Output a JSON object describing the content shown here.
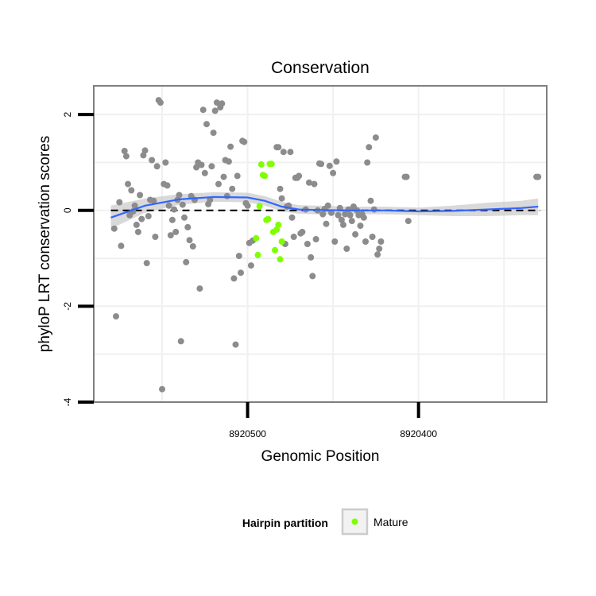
{
  "chart_data": {
    "type": "scatter",
    "title": "Conservation",
    "xlabel": "Genomic Position",
    "ylabel": "phyloP LRT conservation scores",
    "x_reversed": true,
    "xlim": [
      8920590,
      8920325
    ],
    "ylim": [
      -4,
      2.6
    ],
    "x_ticks": [
      8920500,
      8920400
    ],
    "x_tick_labels": [
      "8920500",
      "8920400"
    ],
    "y_ticks": [
      -4,
      -2,
      0,
      2
    ],
    "y_tick_labels": [
      "-4",
      "-2",
      "0",
      "2"
    ],
    "grid": true,
    "reference_line": {
      "y": 0,
      "style": "dashed"
    },
    "legend": {
      "title": "Hairpin partition",
      "placement": "bottom",
      "entries": [
        {
          "label": "Mature",
          "color": "#7fff00"
        }
      ]
    },
    "colors": {
      "other": "#8c8c8c",
      "mature": "#7fff00",
      "smooth": "#3366ff",
      "band": "#cccccc"
    },
    "series": [
      {
        "group": "other",
        "points": [
          [
            8920578,
            -0.38
          ],
          [
            8920577,
            -2.21
          ],
          [
            8920575,
            0.17
          ],
          [
            8920574,
            -0.74
          ],
          [
            8920572,
            1.24
          ],
          [
            8920571,
            1.13
          ],
          [
            8920570,
            0.55
          ],
          [
            8920569,
            -0.1
          ],
          [
            8920568,
            0.42
          ],
          [
            8920567,
            -0.02
          ],
          [
            8920566,
            0.1
          ],
          [
            8920565,
            -0.3
          ],
          [
            8920564,
            -0.45
          ],
          [
            8920563,
            0.32
          ],
          [
            8920562,
            -0.18
          ],
          [
            8920561,
            1.15
          ],
          [
            8920560,
            1.25
          ],
          [
            8920559,
            -1.1
          ],
          [
            8920558,
            -0.12
          ],
          [
            8920557,
            0.22
          ],
          [
            8920556,
            1.05
          ],
          [
            8920555,
            0.2
          ],
          [
            8920554,
            -0.55
          ],
          [
            8920553,
            0.92
          ],
          [
            8920552,
            2.3
          ],
          [
            8920551,
            2.25
          ],
          [
            8920550,
            -3.73
          ],
          [
            8920549,
            0.55
          ],
          [
            8920548,
            1.0
          ],
          [
            8920547,
            0.52
          ],
          [
            8920546,
            0.1
          ],
          [
            8920545,
            -0.52
          ],
          [
            8920544,
            -0.2
          ],
          [
            8920543,
            0.02
          ],
          [
            8920542,
            -0.45
          ],
          [
            8920541,
            0.22
          ],
          [
            8920540,
            0.32
          ],
          [
            8920539,
            -2.73
          ],
          [
            8920538,
            0.12
          ],
          [
            8920537,
            -0.15
          ],
          [
            8920536,
            -1.08
          ],
          [
            8920535,
            -0.35
          ],
          [
            8920534,
            -0.62
          ],
          [
            8920533,
            0.3
          ],
          [
            8920532,
            -0.75
          ],
          [
            8920531,
            0.22
          ],
          [
            8920530,
            0.9
          ],
          [
            8920529,
            1.0
          ],
          [
            8920528,
            -1.63
          ],
          [
            8920527,
            0.95
          ],
          [
            8920526,
            2.1
          ],
          [
            8920525,
            0.78
          ],
          [
            8920524,
            1.8
          ],
          [
            8920523,
            0.13
          ],
          [
            8920522,
            0.22
          ],
          [
            8920521,
            0.92
          ],
          [
            8920520,
            1.62
          ],
          [
            8920519,
            2.08
          ],
          [
            8920518,
            2.25
          ],
          [
            8920517,
            0.55
          ],
          [
            8920516,
            2.15
          ],
          [
            8920515,
            2.23
          ],
          [
            8920514,
            0.7
          ],
          [
            8920513,
            1.05
          ],
          [
            8920512,
            0.3
          ],
          [
            8920511,
            1.02
          ],
          [
            8920510,
            1.33
          ],
          [
            8920509,
            0.45
          ],
          [
            8920508,
            -1.42
          ],
          [
            8920507,
            -2.8
          ],
          [
            8920506,
            0.72
          ],
          [
            8920505,
            -0.95
          ],
          [
            8920504,
            -1.3
          ],
          [
            8920503,
            1.45
          ],
          [
            8920502,
            1.43
          ],
          [
            8920501,
            0.15
          ],
          [
            8920500,
            0.1
          ],
          [
            8920499,
            -0.68
          ],
          [
            8920498,
            -1.15
          ],
          [
            8920497,
            -0.63
          ],
          [
            8920483,
            1.32
          ],
          [
            8920482,
            1.32
          ],
          [
            8920481,
            0.45
          ],
          [
            8920480,
            0.25
          ],
          [
            8920479,
            1.22
          ],
          [
            8920478,
            -0.7
          ],
          [
            8920477,
            0.08
          ],
          [
            8920476,
            0.1
          ],
          [
            8920475,
            1.22
          ],
          [
            8920474,
            -0.15
          ],
          [
            8920473,
            -0.55
          ],
          [
            8920472,
            0.68
          ],
          [
            8920471,
            0.68
          ],
          [
            8920470,
            0.72
          ],
          [
            8920469,
            -0.48
          ],
          [
            8920468,
            -0.45
          ],
          [
            8920466,
            0.02
          ],
          [
            8920465,
            -0.7
          ],
          [
            8920464,
            0.58
          ],
          [
            8920463,
            -0.98
          ],
          [
            8920462,
            -1.37
          ],
          [
            8920461,
            0.55
          ],
          [
            8920460,
            -0.6
          ],
          [
            8920459,
            0.0
          ],
          [
            8920458,
            0.98
          ],
          [
            8920457,
            0.97
          ],
          [
            8920456,
            -0.08
          ],
          [
            8920455,
            0.03
          ],
          [
            8920454,
            -0.28
          ],
          [
            8920453,
            0.1
          ],
          [
            8920452,
            0.93
          ],
          [
            8920451,
            -0.05
          ],
          [
            8920450,
            0.78
          ],
          [
            8920449,
            -0.65
          ],
          [
            8920448,
            1.02
          ],
          [
            8920447,
            -0.1
          ],
          [
            8920446,
            0.05
          ],
          [
            8920445,
            -0.2
          ],
          [
            8920444,
            -0.3
          ],
          [
            8920443,
            -0.08
          ],
          [
            8920442,
            -0.8
          ],
          [
            8920441,
            0.02
          ],
          [
            8920440,
            -0.1
          ],
          [
            8920439,
            -0.22
          ],
          [
            8920438,
            0.08
          ],
          [
            8920437,
            -0.5
          ],
          [
            8920436,
            0.0
          ],
          [
            8920435,
            -0.1
          ],
          [
            8920434,
            -0.32
          ],
          [
            8920433,
            -0.08
          ],
          [
            8920432,
            -0.15
          ],
          [
            8920431,
            -0.65
          ],
          [
            8920430,
            1.0
          ],
          [
            8920429,
            1.32
          ],
          [
            8920428,
            0.2
          ],
          [
            8920427,
            -0.55
          ],
          [
            8920426,
            0.02
          ],
          [
            8920425,
            1.52
          ],
          [
            8920424,
            -0.92
          ],
          [
            8920423,
            -0.8
          ],
          [
            8920422,
            -0.65
          ],
          [
            8920408,
            0.7
          ],
          [
            8920407,
            0.7
          ],
          [
            8920406,
            -0.22
          ],
          [
            8920331,
            0.7
          ],
          [
            8920330,
            0.7
          ]
        ]
      },
      {
        "group": "mature",
        "name": "Mature",
        "points": [
          [
            8920495,
            -0.58
          ],
          [
            8920494,
            -0.93
          ],
          [
            8920493,
            0.09
          ],
          [
            8920492,
            0.96
          ],
          [
            8920491,
            0.74
          ],
          [
            8920490,
            0.72
          ],
          [
            8920489,
            -0.2
          ],
          [
            8920488,
            -0.18
          ],
          [
            8920487,
            0.97
          ],
          [
            8920486,
            0.97
          ],
          [
            8920485,
            -0.45
          ],
          [
            8920484,
            -0.83
          ],
          [
            8920483,
            -0.4
          ],
          [
            8920482,
            -0.3
          ],
          [
            8920481,
            -1.02
          ],
          [
            8920480,
            -0.65
          ]
        ]
      }
    ],
    "smooth_line": {
      "x": [
        8920580,
        8920560,
        8920540,
        8920520,
        8920500,
        8920490,
        8920480,
        8920470,
        8920460,
        8920440,
        8920420,
        8920400,
        8920380,
        8920360,
        8920340,
        8920330
      ],
      "y": [
        -0.15,
        0.1,
        0.23,
        0.28,
        0.27,
        0.2,
        0.08,
        0.02,
        0.01,
        0.0,
        0.0,
        -0.02,
        -0.01,
        0.02,
        0.05,
        0.08
      ],
      "lower": [
        -0.38,
        -0.05,
        0.12,
        0.18,
        0.17,
        0.1,
        -0.02,
        -0.07,
        -0.08,
        -0.08,
        -0.08,
        -0.1,
        -0.12,
        -0.12,
        -0.1,
        -0.1
      ],
      "upper": [
        0.1,
        0.25,
        0.34,
        0.38,
        0.37,
        0.3,
        0.18,
        0.11,
        0.1,
        0.08,
        0.08,
        0.06,
        0.1,
        0.16,
        0.2,
        0.25
      ]
    }
  }
}
